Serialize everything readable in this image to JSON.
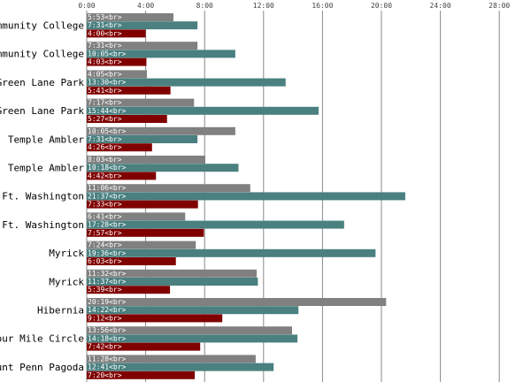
{
  "chart_data": {
    "type": "bar",
    "orientation": "horizontal",
    "categories": [
      "Community College",
      "Community College",
      "Green Lane Park",
      "Green Lane Park",
      "Temple Ambler",
      "Temple Ambler",
      "Ft. Washington",
      "Ft. Washington",
      "Myrick",
      "Myrick",
      "Hibernia",
      "Four Mile Circle",
      "Mount Penn Pagoda"
    ],
    "x_ticks": [
      "0:00",
      "4:00",
      "8:00",
      "12:00",
      "16:00",
      "20:00",
      "24:00",
      "28:00"
    ],
    "xlim_minutes": [
      0,
      1680
    ],
    "grid": true,
    "label_suffix": "<br>",
    "colors": [
      "#808080",
      "#4a8080",
      "#800000"
    ],
    "series": [
      {
        "values": [
          353,
          451,
          245,
          437,
          605,
          483,
          666,
          401,
          444,
          692,
          1219,
          836,
          688
        ],
        "labels": [
          "5:53",
          "7:31",
          "4:05",
          "7:17",
          "10:05",
          "8:03",
          "11:06",
          "6:41",
          "7:24",
          "11:32",
          "20:19",
          "13:56",
          "11:28"
        ]
      },
      {
        "values": [
          451,
          605,
          810,
          944,
          451,
          618,
          1297,
          1048,
          1176,
          697,
          862,
          858,
          761
        ],
        "labels": [
          "7:31",
          "10:05",
          "13:30",
          "15:44",
          "7:31",
          "10:18",
          "21:37",
          "17:28",
          "19:36",
          "11:37",
          "14:22",
          "14:18",
          "12:41"
        ]
      },
      {
        "values": [
          240,
          243,
          341,
          327,
          266,
          282,
          453,
          477,
          363,
          339,
          552,
          462,
          440
        ],
        "labels": [
          "4:00",
          "4:03",
          "5:41",
          "5:27",
          "4:26",
          "4:42",
          "7:33",
          "7:57",
          "6:03",
          "5:39",
          "9:12",
          "7:42",
          "7:20"
        ]
      }
    ]
  }
}
